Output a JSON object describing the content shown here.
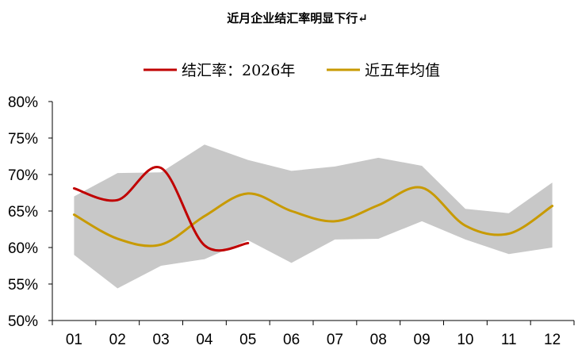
{
  "chart_data": {
    "type": "line",
    "title": "近月企业结汇率明显下行↵",
    "categories": [
      "01",
      "02",
      "03",
      "04",
      "05",
      "06",
      "07",
      "08",
      "09",
      "10",
      "11",
      "12"
    ],
    "ylim": [
      50,
      80
    ],
    "yticks": [
      "80%",
      "75%",
      "70%",
      "65%",
      "60%",
      "55%",
      "50%"
    ],
    "ytick_values": [
      80,
      75,
      70,
      65,
      60,
      55,
      50
    ],
    "legend": [
      "结汇率：2026年",
      "近五年均值"
    ],
    "legend_position": "top-center",
    "grid": false,
    "series": [
      {
        "name": "结汇率：2026年",
        "color": "#C00000",
        "values": [
          68.1,
          66.5,
          70.9,
          60.3,
          60.6,
          null,
          null,
          null,
          null,
          null,
          null,
          null
        ]
      },
      {
        "name": "近五年均值",
        "color": "#C89A00",
        "values": [
          64.5,
          61.2,
          60.4,
          64.3,
          67.4,
          65.0,
          63.6,
          65.8,
          68.2,
          63.0,
          61.9,
          65.7
        ]
      }
    ],
    "band": {
      "color": "#C8C8C8",
      "upper": [
        67.0,
        70.2,
        70.3,
        74.1,
        72.0,
        70.5,
        71.1,
        72.3,
        71.2,
        65.3,
        64.7,
        68.9
      ],
      "lower": [
        59.0,
        54.4,
        57.5,
        58.4,
        61.0,
        57.9,
        61.1,
        61.2,
        63.6,
        61.1,
        59.1,
        60.0
      ]
    }
  }
}
